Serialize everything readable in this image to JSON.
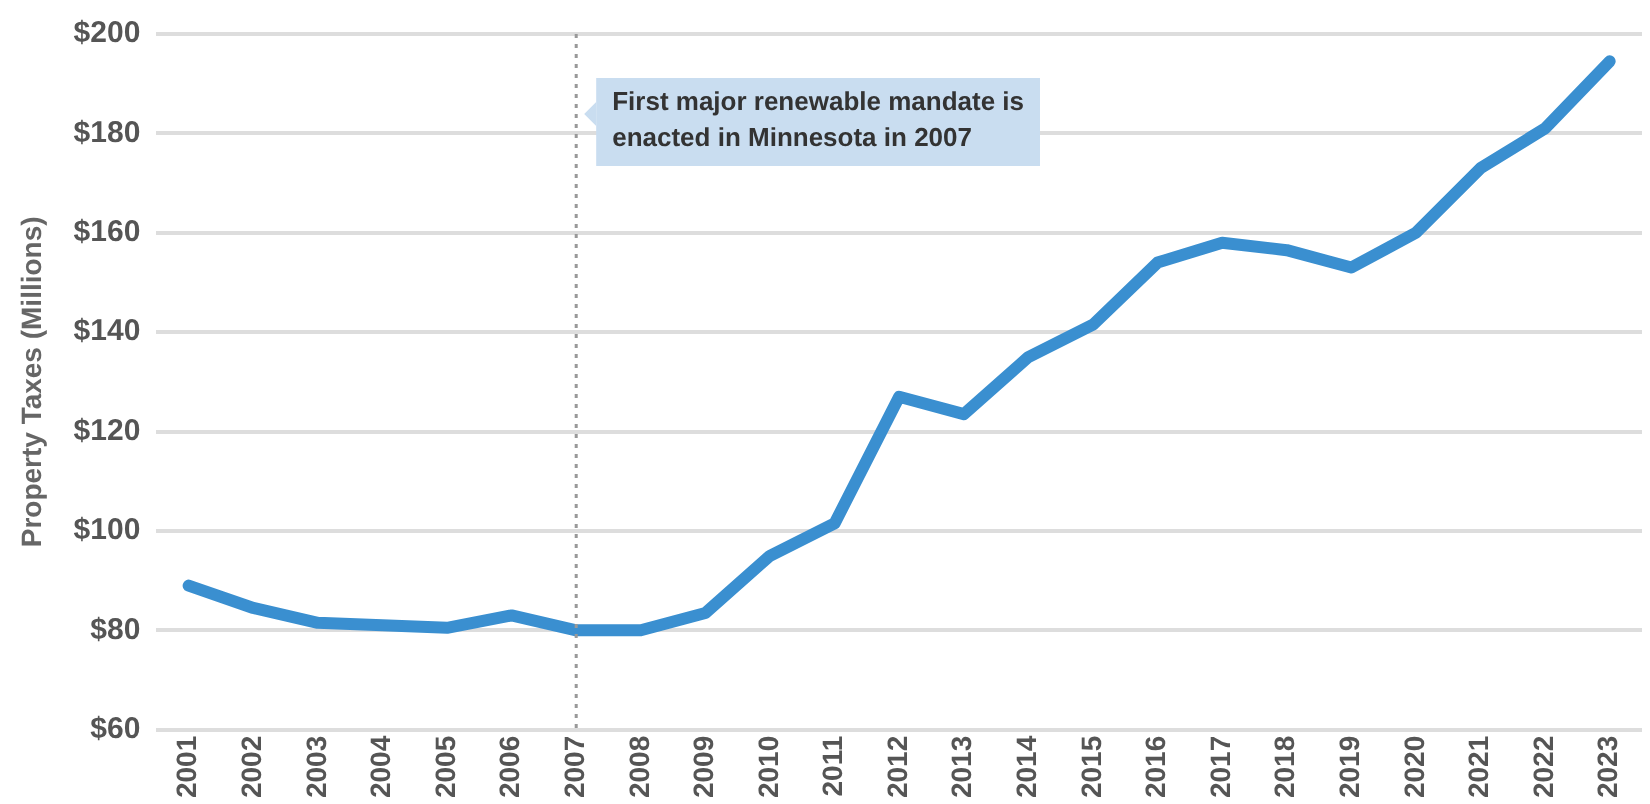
{
  "chart_data": {
    "type": "line",
    "ylabel": "Property Taxes (Millions)",
    "categories": [
      "2001",
      "2002",
      "2003",
      "2004",
      "2005",
      "2006",
      "2007",
      "2008",
      "2009",
      "2010",
      "2011",
      "2012",
      "2013",
      "2014",
      "2015",
      "2016",
      "2017",
      "2018",
      "2019",
      "2020",
      "2021",
      "2022",
      "2023"
    ],
    "series": [
      {
        "color": "#3a8fd0",
        "values": [
          89,
          84.5,
          81.5,
          81,
          80.5,
          83,
          80,
          80,
          83.5,
          95,
          101.5,
          127,
          123.5,
          135,
          141.5,
          154,
          158,
          156.5,
          153,
          160,
          173,
          181,
          194.5
        ]
      }
    ],
    "ylim": [
      60,
      200
    ],
    "yticks": [
      {
        "value": 60,
        "label": "$60"
      },
      {
        "value": 80,
        "label": "$80"
      },
      {
        "value": 100,
        "label": "$100"
      },
      {
        "value": 120,
        "label": "$120"
      },
      {
        "value": 140,
        "label": "$140"
      },
      {
        "value": 160,
        "label": "$160"
      },
      {
        "value": 180,
        "label": "$180"
      },
      {
        "value": 200,
        "label": "$200"
      }
    ],
    "ref_lines": [
      {
        "axis": "x",
        "value": "2007",
        "label": "First major renewable mandate is enacted in Minnesota in 2007",
        "color": "#999999",
        "line_style": "dotted"
      }
    ],
    "grid": "y",
    "legend": false,
    "marker": "none",
    "line_style": "solid"
  }
}
